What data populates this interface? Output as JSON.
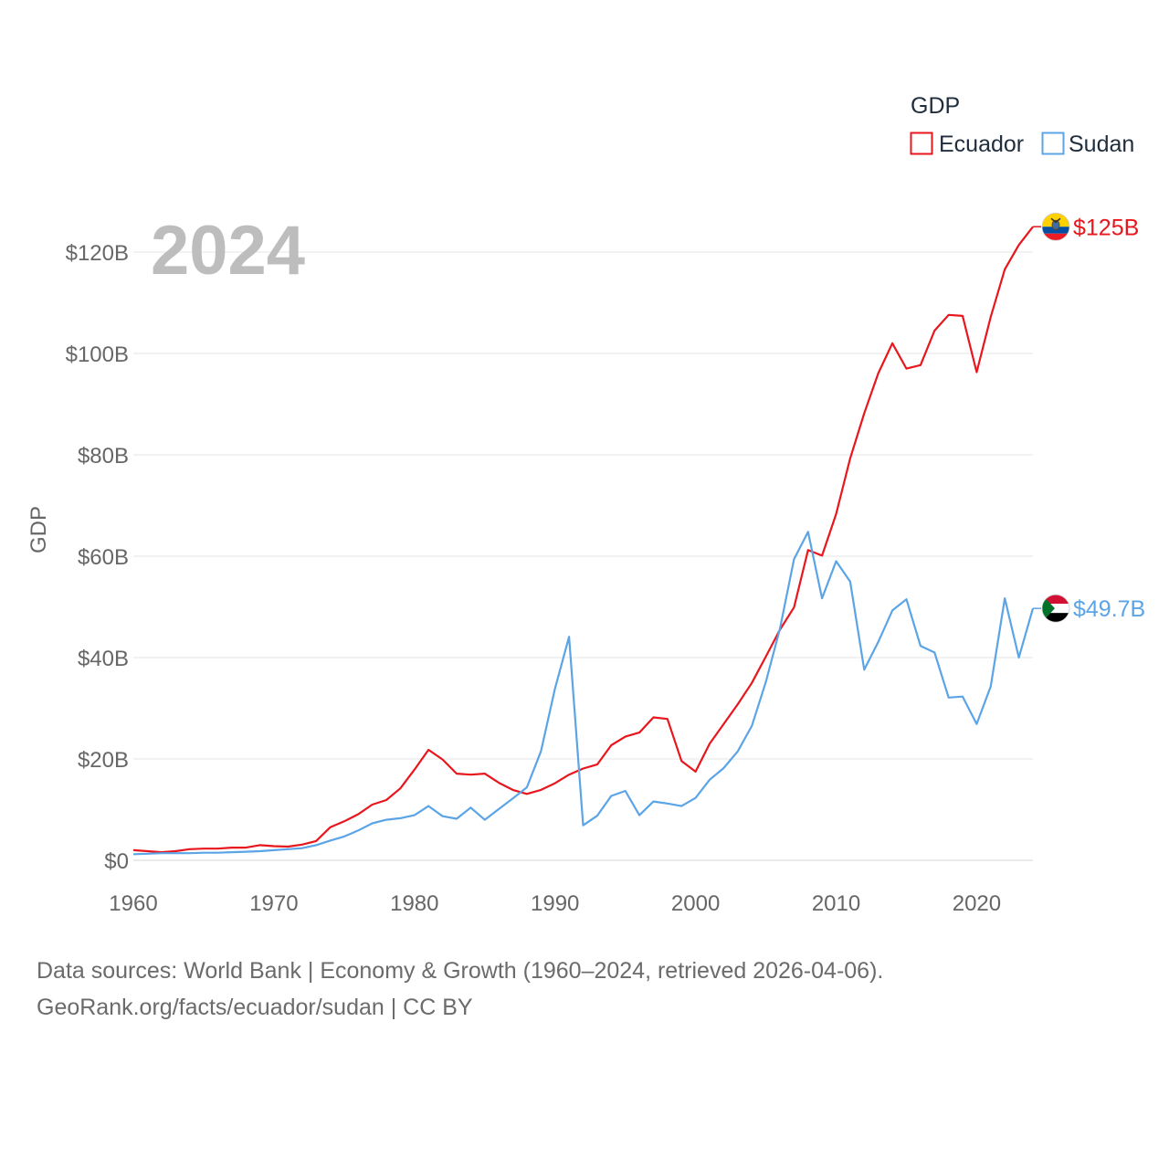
{
  "chart_data": {
    "type": "line",
    "title": "GDP",
    "ylabel": "GDP",
    "xlabel": "",
    "current_year": "2024",
    "xlim": [
      1960,
      2024
    ],
    "ylim": [
      0,
      130
    ],
    "unit": "USD billions",
    "x_ticks": [
      {
        "value": 1960,
        "label": "1960"
      },
      {
        "value": 1970,
        "label": "1970"
      },
      {
        "value": 1980,
        "label": "1980"
      },
      {
        "value": 1990,
        "label": "1990"
      },
      {
        "value": 2000,
        "label": "2000"
      },
      {
        "value": 2010,
        "label": "2010"
      },
      {
        "value": 2020,
        "label": "2020"
      }
    ],
    "y_ticks": [
      {
        "value": 0,
        "label": "$0"
      },
      {
        "value": 20,
        "label": "$20B"
      },
      {
        "value": 40,
        "label": "$40B"
      },
      {
        "value": 60,
        "label": "$60B"
      },
      {
        "value": 80,
        "label": "$80B"
      },
      {
        "value": 100,
        "label": "$100B"
      },
      {
        "value": 120,
        "label": "$120B"
      }
    ],
    "grid": true,
    "legend": {
      "title": "GDP",
      "placement": "top-right"
    },
    "years": [
      1960,
      1961,
      1962,
      1963,
      1964,
      1965,
      1966,
      1967,
      1968,
      1969,
      1970,
      1971,
      1972,
      1973,
      1974,
      1975,
      1976,
      1977,
      1978,
      1979,
      1980,
      1981,
      1982,
      1983,
      1984,
      1985,
      1986,
      1987,
      1988,
      1989,
      1990,
      1991,
      1992,
      1993,
      1994,
      1995,
      1996,
      1997,
      1998,
      1999,
      2000,
      2001,
      2002,
      2003,
      2004,
      2005,
      2006,
      2007,
      2008,
      2009,
      2010,
      2011,
      2012,
      2013,
      2014,
      2015,
      2016,
      2017,
      2018,
      2019,
      2020,
      2021,
      2022,
      2023,
      2024
    ],
    "series": [
      {
        "name": "Ecuador",
        "color": "#e8161d",
        "end_label": "$125B",
        "flag": "ecuador-flag-icon",
        "values": [
          2.0,
          1.8,
          1.6,
          1.8,
          2.2,
          2.3,
          2.3,
          2.5,
          2.5,
          3.0,
          2.8,
          2.7,
          3.1,
          3.8,
          6.5,
          7.7,
          9.1,
          11.0,
          11.9,
          14.2,
          17.9,
          21.8,
          19.9,
          17.1,
          16.9,
          17.1,
          15.3,
          13.9,
          13.1,
          13.9,
          15.2,
          16.9,
          18.1,
          18.9,
          22.7,
          24.4,
          25.2,
          28.2,
          27.9,
          19.6,
          17.5,
          23.0,
          26.9,
          30.8,
          35.0,
          40.2,
          45.5,
          49.9,
          61.2,
          60.1,
          68.3,
          79.3,
          88.2,
          96.1,
          102.0,
          97.0,
          97.7,
          104.5,
          107.6,
          107.4,
          96.3,
          107.2,
          116.6,
          121.4,
          125.0
        ]
      },
      {
        "name": "Sudan",
        "color": "#5ba4e6",
        "end_label": "$49.7B",
        "flag": "sudan-flag-icon",
        "values": [
          1.2,
          1.3,
          1.4,
          1.4,
          1.4,
          1.5,
          1.5,
          1.6,
          1.7,
          1.8,
          2.0,
          2.2,
          2.4,
          3.0,
          3.9,
          4.7,
          5.9,
          7.3,
          8.0,
          8.3,
          8.9,
          10.7,
          8.7,
          8.2,
          10.4,
          8.0,
          10.1,
          12.2,
          14.4,
          21.5,
          33.9,
          44.1,
          6.9,
          8.8,
          12.7,
          13.7,
          8.9,
          11.6,
          11.2,
          10.7,
          12.3,
          15.9,
          18.2,
          21.5,
          26.5,
          35.2,
          45.7,
          59.4,
          64.8,
          51.7,
          59.0,
          55.0,
          37.6,
          43.1,
          49.3,
          51.5,
          42.3,
          41.0,
          32.1,
          32.3,
          26.9,
          34.3,
          51.7,
          40.0,
          49.7
        ]
      }
    ]
  },
  "footer": {
    "line1": "Data sources: World Bank | Economy & Growth (1960–2024, retrieved 2026-04-06).",
    "line2": "GeoRank.org/facts/ecuador/sudan | CC BY"
  }
}
